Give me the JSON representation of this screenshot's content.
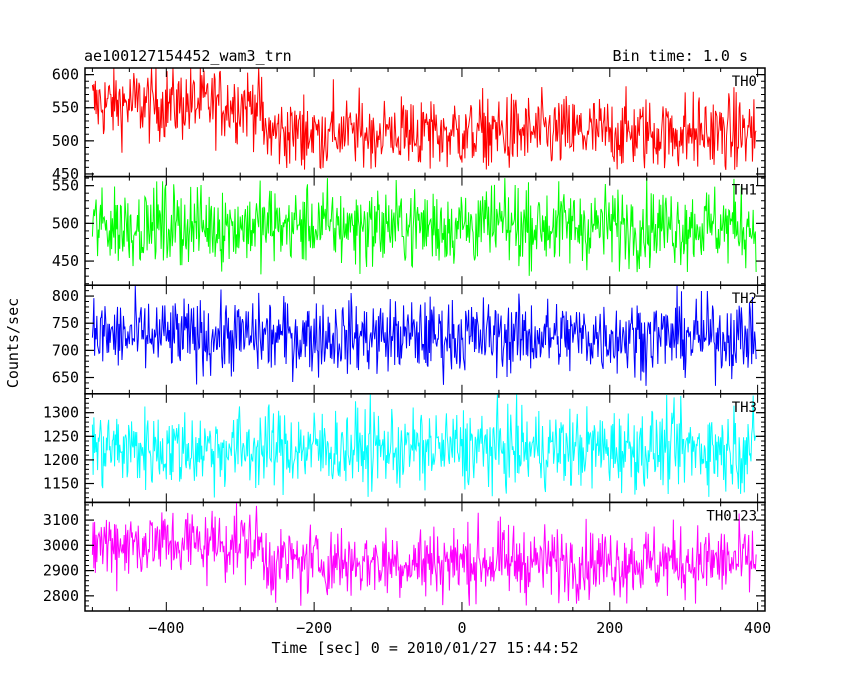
{
  "chart_data": {
    "type": "line",
    "title": "ae100127154452_wam3_trn",
    "bin_time": "Bin time: 1.0 s",
    "xlabel": "Time [sec] 0 = 2010/01/27 15:44:52",
    "ylabel": "Counts/sec",
    "xlim": [
      -510,
      410
    ],
    "xticks": [
      -400,
      -200,
      0,
      200,
      400
    ],
    "x_data_range": [
      -500,
      398
    ],
    "panels": [
      {
        "name": "TH0",
        "color": "#ff0000",
        "ylim": [
          446,
          610
        ],
        "yticks": [
          450,
          500,
          550,
          600
        ],
        "mean_segments": [
          {
            "x": [
              -500,
              -270
            ],
            "mean": 556
          },
          {
            "x": [
              -270,
              398
            ],
            "mean": 512
          }
        ],
        "noise": 28,
        "spike_min": 456,
        "spike_max": 610
      },
      {
        "name": "TH1",
        "color": "#00ff00",
        "ylim": [
          418,
          562
        ],
        "yticks": [
          450,
          500,
          550
        ],
        "mean_segments": [
          {
            "x": [
              -500,
              398
            ],
            "mean": 497
          }
        ],
        "noise": 26,
        "spike_min": 430,
        "spike_max": 560
      },
      {
        "name": "TH2",
        "color": "#0000ff",
        "ylim": [
          620,
          820
        ],
        "yticks": [
          650,
          700,
          750,
          800
        ],
        "mean_segments": [
          {
            "x": [
              -500,
              398
            ],
            "mean": 726
          }
        ],
        "noise": 34,
        "spike_min": 632,
        "spike_max": 820
      },
      {
        "name": "TH3",
        "color": "#00ffff",
        "ylim": [
          1110,
          1340
        ],
        "yticks": [
          1150,
          1200,
          1250,
          1300
        ],
        "mean_segments": [
          {
            "x": [
              -500,
              398
            ],
            "mean": 1224
          }
        ],
        "noise": 42,
        "spike_min": 1120,
        "spike_max": 1340
      },
      {
        "name": "TH0123",
        "color": "#ff00ff",
        "ylim": [
          2740,
          3170
        ],
        "yticks": [
          2800,
          2900,
          3000,
          3100
        ],
        "mean_segments": [
          {
            "x": [
              -500,
              -270
            ],
            "mean": 3010
          },
          {
            "x": [
              -270,
              398
            ],
            "mean": 2935
          }
        ],
        "noise": 70,
        "spike_min": 2760,
        "spike_max": 3170
      }
    ]
  }
}
